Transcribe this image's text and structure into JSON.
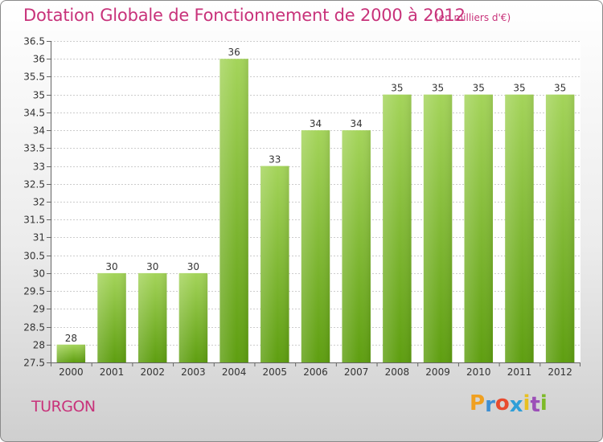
{
  "header": {
    "title": "Dotation Globale de Fonctionnement de 2000 à 2012",
    "unit": "(en milliers d'€)"
  },
  "footer": {
    "place": "TURGON",
    "brand": "Proxiti",
    "brand_letters": [
      "P",
      "r",
      "o",
      "x",
      "i",
      "t",
      "i"
    ],
    "brand_colors": [
      "#f0a020",
      "#3f8fd2",
      "#e84a2e",
      "#2f9fd8",
      "#e8c020",
      "#9c4fb8",
      "#7dba28"
    ]
  },
  "colors": {
    "title": "#c8327a",
    "bar_top": "#a4d45a",
    "bar_bottom": "#5e9e10",
    "grid": "#cccccc"
  },
  "chart_data": {
    "type": "bar",
    "categories": [
      "2000",
      "2001",
      "2002",
      "2003",
      "2004",
      "2005",
      "2006",
      "2007",
      "2008",
      "2009",
      "2010",
      "2011",
      "2012"
    ],
    "values": [
      28,
      30,
      30,
      30,
      36,
      33,
      34,
      34,
      35,
      35,
      35,
      35,
      35
    ],
    "ylim": [
      27.5,
      36.5
    ],
    "ytick_step": 0.5,
    "yticks": [
      "27.5",
      "28",
      "28.5",
      "29",
      "29.5",
      "30",
      "30.5",
      "31",
      "31.5",
      "32",
      "32.5",
      "33",
      "33.5",
      "34",
      "34.5",
      "35",
      "35.5",
      "36",
      "36.5"
    ],
    "grid": true,
    "data_labels": true
  }
}
